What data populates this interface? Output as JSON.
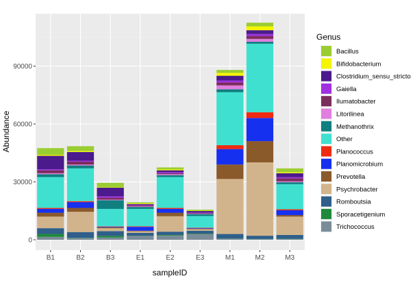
{
  "chart_data": {
    "type": "bar",
    "stacked": true,
    "xlabel": "sampleID",
    "ylabel": "Abundance",
    "ylim": [
      0,
      112000
    ],
    "yticks": [
      0,
      30000,
      60000,
      90000
    ],
    "yticklabels": [
      "0",
      "30000",
      "60000",
      "90000"
    ],
    "grid": true,
    "legend_position": "right",
    "legend_title": "Genus",
    "categories": [
      "B1",
      "B2",
      "B3",
      "E1",
      "E2",
      "E3",
      "M1",
      "M2",
      "M3"
    ],
    "series": [
      {
        "name": "Trichococcus",
        "color": "#7b8c99",
        "values": [
          1500,
          800,
          1200,
          2000,
          2200,
          3000,
          500,
          300,
          400
        ]
      },
      {
        "name": "Sporacetigenium",
        "color": "#1e8a3a",
        "values": [
          1500,
          200,
          800,
          100,
          300,
          200,
          100,
          100,
          100
        ]
      },
      {
        "name": "Romboutsia",
        "color": "#2f5f8a",
        "values": [
          3000,
          3000,
          2500,
          1500,
          1700,
          1500,
          2400,
          1700,
          2000
        ]
      },
      {
        "name": "Psychrobacter",
        "color": "#d2b48c",
        "values": [
          6000,
          10500,
          1500,
          800,
          8000,
          800,
          28500,
          38000,
          9500
        ]
      },
      {
        "name": "Prevotella",
        "color": "#8b5a2b",
        "values": [
          2000,
          2000,
          500,
          300,
          1800,
          300,
          7500,
          11000,
          800
        ]
      },
      {
        "name": "Planomicrobium",
        "color": "#1630f0",
        "values": [
          2000,
          3000,
          300,
          2000,
          2000,
          300,
          8000,
          12000,
          2500
        ]
      },
      {
        "name": "Planococcus",
        "color": "#f02a10",
        "values": [
          500,
          500,
          200,
          300,
          500,
          200,
          2000,
          3000,
          500
        ]
      },
      {
        "name": "Other",
        "color": "#40e0d0",
        "values": [
          16000,
          17000,
          9000,
          9000,
          16000,
          6000,
          27500,
          35500,
          13000
        ]
      },
      {
        "name": "Methanothrix",
        "color": "#0f7f7f",
        "values": [
          1500,
          1500,
          4500,
          1000,
          1000,
          1000,
          1500,
          1000,
          1000
        ]
      },
      {
        "name": "Litorilinea",
        "color": "#e07fe0",
        "values": [
          500,
          500,
          300,
          300,
          500,
          200,
          2000,
          1500,
          500
        ]
      },
      {
        "name": "Ilumatobacter",
        "color": "#7b2d5b",
        "values": [
          1500,
          1500,
          1000,
          500,
          500,
          300,
          1500,
          1500,
          1500
        ]
      },
      {
        "name": "Gaiella",
        "color": "#a030e0",
        "values": [
          500,
          500,
          700,
          300,
          500,
          300,
          1000,
          1000,
          600
        ]
      },
      {
        "name": "Clostridium_sensu_stricto",
        "color": "#4b1a8c",
        "values": [
          7000,
          4500,
          4500,
          400,
          1000,
          800,
          2500,
          2000,
          2100
        ]
      },
      {
        "name": "Bifidobacterium",
        "color": "#f5f500",
        "values": [
          500,
          500,
          200,
          300,
          500,
          200,
          1500,
          2000,
          500
        ]
      },
      {
        "name": "Bacillus",
        "color": "#9acd32",
        "values": [
          3500,
          2500,
          2300,
          600,
          1000,
          500,
          1500,
          1900,
          2000
        ]
      }
    ]
  }
}
